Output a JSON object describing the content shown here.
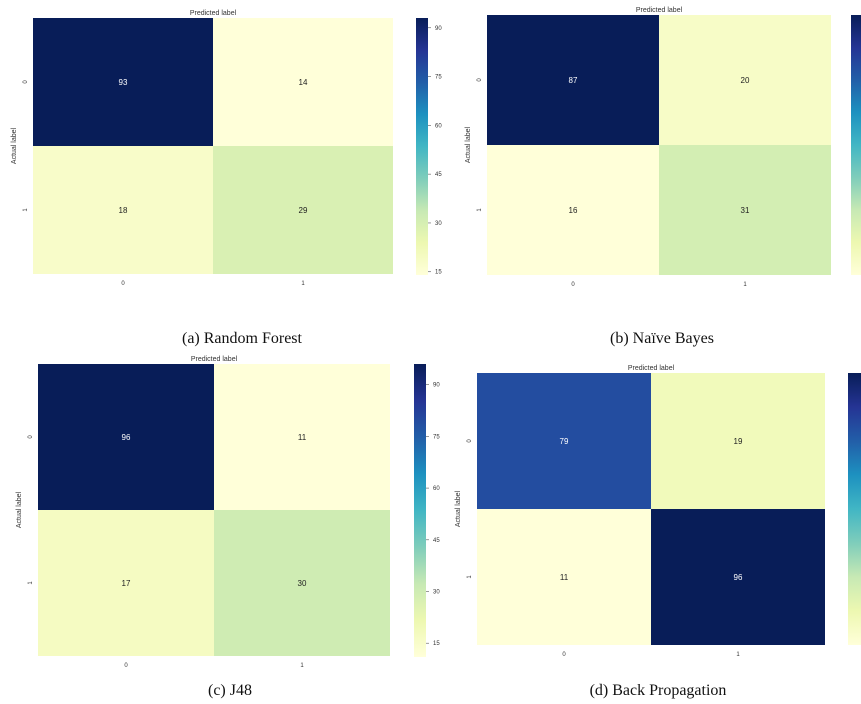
{
  "figure": {
    "colormap": "YlGnBu",
    "colors": [
      "#ffffd9",
      "#edf8b1",
      "#c7e9b4",
      "#7fcdbb",
      "#41b6c4",
      "#1d91c0",
      "#225ea8",
      "#253494",
      "#081d58"
    ]
  },
  "chart_data": [
    {
      "type": "heatmap",
      "title": "",
      "caption": "(a) Random Forest",
      "xlabel": "Predicted label",
      "ylabel": "Actual label",
      "x_categories": [
        "0",
        "1"
      ],
      "y_categories": [
        "0",
        "1"
      ],
      "values": [
        [
          93,
          14
        ],
        [
          18,
          29
        ]
      ],
      "colorbar": {
        "vmin": 14,
        "vmax": 93,
        "ticks": [
          "90",
          "75",
          "60",
          "45",
          "30",
          "15"
        ]
      },
      "colorbar_visible": true
    },
    {
      "type": "heatmap",
      "title": "",
      "caption": "(b) Naïve Bayes",
      "xlabel": "Predicted label",
      "ylabel": "Actual label",
      "x_categories": [
        "0",
        "1"
      ],
      "y_categories": [
        "0",
        "1"
      ],
      "values": [
        [
          87,
          20
        ],
        [
          16,
          31
        ]
      ],
      "colorbar": {
        "vmin": 16,
        "vmax": 87,
        "ticks": []
      },
      "colorbar_visible": true
    },
    {
      "type": "heatmap",
      "title": "",
      "caption": "(c) J48",
      "xlabel": "Predicted label",
      "ylabel": "Actual label",
      "x_categories": [
        "0",
        "1"
      ],
      "y_categories": [
        "0",
        "1"
      ],
      "values": [
        [
          96,
          11
        ],
        [
          17,
          30
        ]
      ],
      "colorbar": {
        "vmin": 11,
        "vmax": 96,
        "ticks": [
          "90",
          "75",
          "60",
          "45",
          "30",
          "15"
        ]
      },
      "colorbar_visible": true
    },
    {
      "type": "heatmap",
      "title": "",
      "caption": "(d) Back Propagation",
      "xlabel": "Predicted label",
      "ylabel": "Actual label",
      "x_categories": [
        "0",
        "1"
      ],
      "y_categories": [
        "0",
        "1"
      ],
      "values": [
        [
          79,
          19
        ],
        [
          11,
          96
        ]
      ],
      "colorbar": {
        "vmin": 11,
        "vmax": 96,
        "ticks": []
      },
      "colorbar_visible": true
    }
  ]
}
